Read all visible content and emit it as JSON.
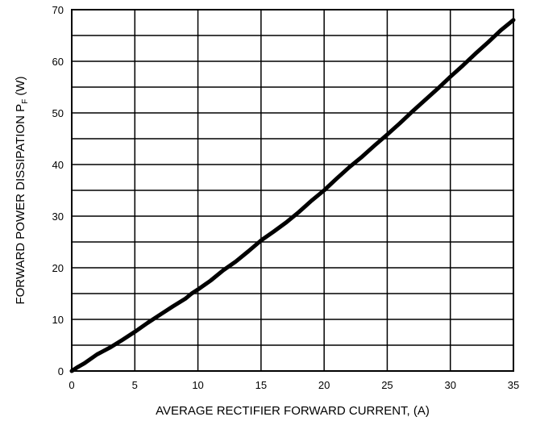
{
  "chart_data": {
    "type": "line",
    "title": "",
    "xlabel": "AVERAGE RECTIFIER FORWARD CURRENT, (A)",
    "ylabel": "FORWARD POWER DISSIPATION P",
    "ylabel_subscript": "F",
    "ylabel_unit": " (W)",
    "xlim": [
      0,
      35
    ],
    "ylim": [
      0,
      70
    ],
    "x_ticks": [
      0,
      5,
      10,
      15,
      20,
      25,
      30,
      35
    ],
    "y_ticks": [
      0,
      10,
      20,
      30,
      40,
      50,
      60,
      70
    ],
    "x_grid_step": 5,
    "y_grid_step": 5,
    "grid": true,
    "line_color": "#000000",
    "series": [
      {
        "x": [
          0,
          0.5,
          1,
          2,
          3,
          4,
          5,
          6,
          7,
          8,
          9,
          9.5,
          10,
          11,
          12,
          13,
          14,
          15,
          16,
          17,
          18,
          19,
          20,
          21,
          22,
          23,
          24,
          25,
          26,
          27,
          28,
          29,
          30,
          31,
          32,
          33,
          34,
          35
        ],
        "y": [
          0,
          0.8,
          1.5,
          3.2,
          4.5,
          6.0,
          7.6,
          9.3,
          10.9,
          12.5,
          14.0,
          15.0,
          15.8,
          17.5,
          19.5,
          21.2,
          23.2,
          25.3,
          27.0,
          28.8,
          30.8,
          33.0,
          35.0,
          37.3,
          39.5,
          41.5,
          43.7,
          45.8,
          48.0,
          50.3,
          52.5,
          54.7,
          57.0,
          59.2,
          61.5,
          63.7,
          66.0,
          68.0
        ]
      }
    ]
  }
}
